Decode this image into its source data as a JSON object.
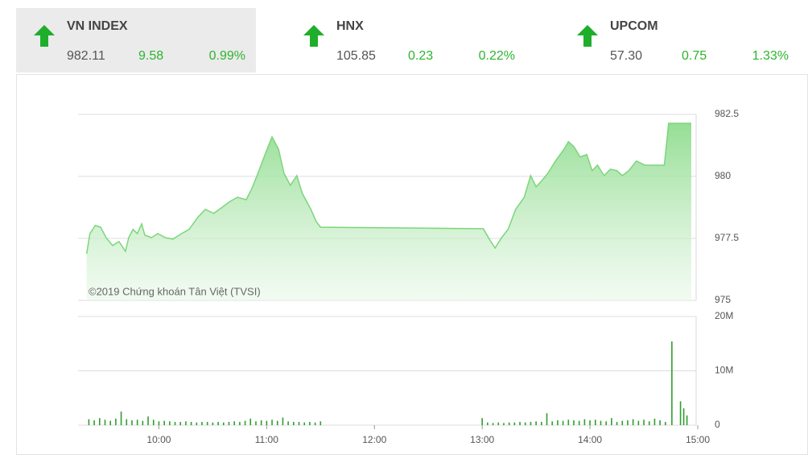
{
  "header": {
    "indices": [
      {
        "name": "VN INDEX",
        "value": "982.11",
        "change": "9.58",
        "percent": "0.99%"
      },
      {
        "name": "HNX",
        "value": "105.85",
        "change": "0.23",
        "percent": "0.22%"
      },
      {
        "name": "UPCOM",
        "value": "57.30",
        "change": "0.75",
        "percent": "1.33%"
      }
    ]
  },
  "chart_data": [
    {
      "type": "area",
      "annotation": "©2019 Chứng khoán Tân Việt (TVSI)",
      "color": "#7bd67b",
      "x": [
        9.33,
        9.36,
        9.41,
        9.46,
        9.51,
        9.57,
        9.63,
        9.69,
        9.72,
        9.76,
        9.8,
        9.84,
        9.87,
        9.93,
        9.99,
        10.06,
        10.13,
        10.21,
        10.28,
        10.36,
        10.43,
        10.51,
        10.58,
        10.66,
        10.73,
        10.81,
        10.86,
        10.92,
        10.99,
        11.05,
        11.11,
        11.16,
        11.22,
        11.28,
        11.33,
        11.41,
        11.46,
        11.5,
        13.01,
        13.07,
        13.12,
        13.18,
        13.24,
        13.31,
        13.39,
        13.45,
        13.5,
        13.55,
        13.61,
        13.68,
        13.76,
        13.8,
        13.85,
        13.91,
        13.97,
        14.02,
        14.07,
        14.13,
        14.19,
        14.25,
        14.3,
        14.36,
        14.43,
        14.51,
        14.58,
        14.69,
        14.73,
        14.94
      ],
      "values": [
        976.88,
        977.69,
        978.02,
        977.95,
        977.53,
        977.21,
        977.37,
        976.98,
        977.53,
        977.86,
        977.69,
        978.08,
        977.63,
        977.53,
        977.69,
        977.53,
        977.47,
        977.69,
        977.86,
        978.34,
        978.67,
        978.51,
        978.73,
        978.99,
        979.16,
        979.06,
        979.48,
        980.13,
        980.94,
        981.59,
        981.1,
        980.13,
        979.64,
        980.03,
        979.32,
        978.67,
        978.18,
        977.95,
        977.89,
        977.44,
        977.11,
        977.53,
        977.86,
        978.67,
        979.16,
        980.03,
        979.58,
        979.81,
        980.13,
        980.62,
        981.1,
        981.4,
        981.2,
        980.78,
        980.88,
        980.23,
        980.45,
        980.03,
        980.29,
        980.23,
        980.03,
        980.23,
        980.62,
        980.45,
        980.45,
        980.45,
        982.14,
        982.14
      ],
      "xlim": [
        9.25,
        15
      ],
      "ylim": [
        975,
        982.5
      ],
      "yticks": [
        975,
        977.5,
        980,
        982.5
      ],
      "grid": true
    },
    {
      "type": "bar",
      "color": "#2f9e2f",
      "x": [
        9.35,
        9.4,
        9.45,
        9.5,
        9.55,
        9.6,
        9.65,
        9.7,
        9.75,
        9.8,
        9.85,
        9.9,
        9.95,
        10.0,
        10.05,
        10.1,
        10.15,
        10.2,
        10.25,
        10.3,
        10.35,
        10.4,
        10.45,
        10.5,
        10.55,
        10.6,
        10.65,
        10.7,
        10.75,
        10.8,
        10.85,
        10.9,
        10.95,
        11.0,
        11.05,
        11.1,
        11.15,
        11.2,
        11.25,
        11.3,
        11.35,
        11.4,
        11.45,
        11.5,
        13.0,
        13.05,
        13.1,
        13.15,
        13.2,
        13.25,
        13.3,
        13.35,
        13.4,
        13.45,
        13.5,
        13.55,
        13.6,
        13.65,
        13.7,
        13.75,
        13.8,
        13.85,
        13.9,
        13.95,
        14.0,
        14.05,
        14.1,
        14.15,
        14.2,
        14.25,
        14.3,
        14.35,
        14.4,
        14.45,
        14.5,
        14.55,
        14.6,
        14.65,
        14.7,
        14.76,
        14.84,
        14.87,
        14.9
      ],
      "values": [
        1.1,
        0.9,
        1.3,
        1.0,
        0.8,
        1.2,
        2.5,
        1.1,
        0.9,
        1.0,
        0.8,
        1.6,
        1.0,
        0.7,
        0.8,
        0.7,
        0.6,
        0.6,
        0.7,
        0.6,
        0.5,
        0.6,
        0.6,
        0.5,
        0.6,
        0.5,
        0.6,
        0.7,
        0.6,
        0.8,
        1.2,
        0.7,
        0.9,
        0.8,
        1.0,
        0.8,
        1.4,
        0.7,
        0.6,
        0.6,
        0.5,
        0.6,
        0.5,
        0.7,
        1.3,
        0.5,
        0.4,
        0.5,
        0.4,
        0.5,
        0.5,
        0.6,
        0.5,
        0.6,
        0.7,
        0.6,
        2.2,
        0.7,
        0.9,
        0.8,
        1.0,
        0.9,
        0.8,
        1.1,
        0.9,
        1.0,
        0.8,
        0.7,
        1.3,
        0.6,
        0.8,
        0.9,
        1.1,
        0.8,
        1.0,
        0.7,
        1.2,
        0.9,
        0.6,
        15.4,
        4.4,
        3.1,
        1.8
      ],
      "xlim": [
        9.25,
        15
      ],
      "ylim": [
        0,
        20
      ],
      "yticks": [
        0,
        {
          "value": 10,
          "label": "10M"
        },
        {
          "value": 20,
          "label": "20M"
        }
      ],
      "xticks": [
        {
          "value": 10,
          "label": "10:00"
        },
        {
          "value": 11,
          "label": "11:00"
        },
        {
          "value": 12,
          "label": "12:00"
        },
        {
          "value": 13,
          "label": "13:00"
        },
        {
          "value": 14,
          "label": "14:00"
        },
        {
          "value": 15,
          "label": "15:00"
        }
      ],
      "grid": true
    }
  ]
}
